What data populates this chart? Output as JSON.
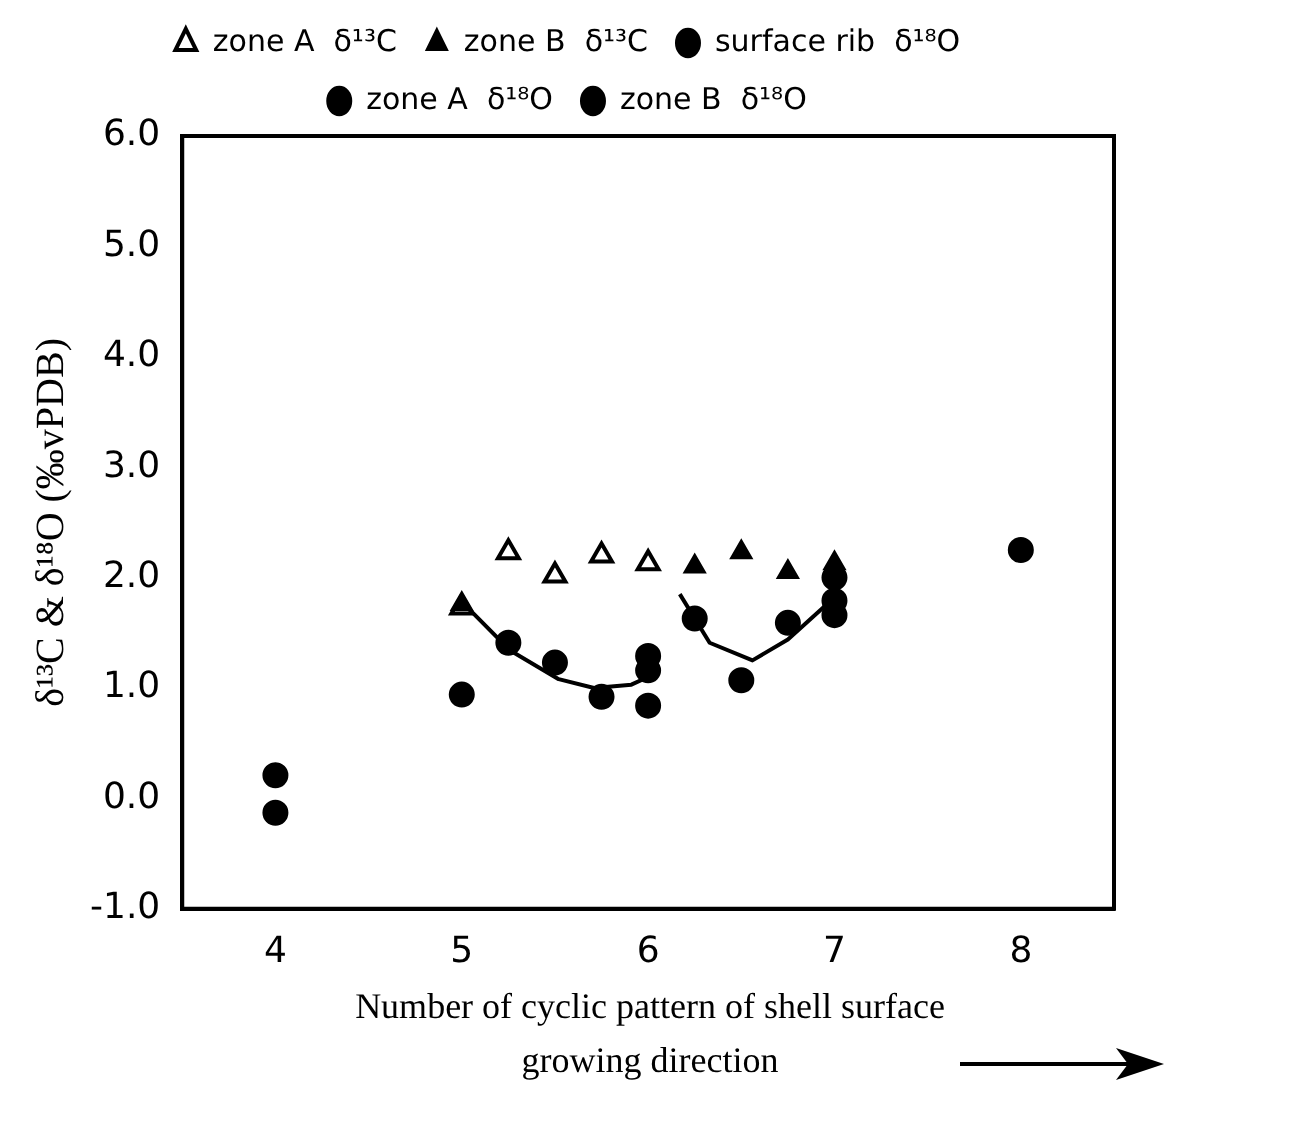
{
  "chart_data": {
    "type": "scatter",
    "xlabel": "Number of cyclic pattern of shell surface growing direction",
    "ylabel": "δ¹³C & δ¹⁸O (‰vPDB)",
    "xlim": [
      3.5,
      8.5
    ],
    "xticks": [
      4,
      5,
      6,
      7,
      8
    ],
    "ylim": [
      -1,
      6
    ],
    "yticks": [
      {
        "value": -1,
        "label": "-1.0"
      },
      {
        "value": 0,
        "label": "0.0"
      },
      {
        "value": 1,
        "label": "1.0"
      },
      {
        "value": 2,
        "label": "2.0"
      },
      {
        "value": 3,
        "label": "3.0"
      },
      {
        "value": 4,
        "label": "4.0"
      },
      {
        "value": 5,
        "label": "5.0"
      },
      {
        "value": 6,
        "label": "6.0"
      }
    ],
    "legend": "top",
    "grid": false,
    "series": [
      {
        "name": "zone A  δ¹³C",
        "marker": "triangle-open",
        "color": "#000000",
        "x": [
          5,
          5.25,
          5.5,
          5.75,
          6
        ],
        "values": [
          1.73,
          2.23,
          2.02,
          2.2,
          2.13
        ]
      },
      {
        "name": "zone B  δ¹³C",
        "marker": "triangle",
        "color": "#000000",
        "x": [
          5,
          6.25,
          6.5,
          6.75,
          7
        ],
        "values": [
          1.76,
          2.1,
          2.23,
          2.05,
          2.13
        ]
      },
      {
        "name": "surface rib  δ¹⁸O",
        "marker": "circle",
        "color": "#000000",
        "x": [
          4,
          4,
          5,
          6,
          7,
          8
        ],
        "values": [
          0.21,
          -0.13,
          0.94,
          0.84,
          1.66,
          2.25
        ]
      },
      {
        "name": "zone A  δ¹⁸O",
        "marker": "circle",
        "color": "#000000",
        "x": [
          5.25,
          5.5,
          5.75,
          6,
          6
        ],
        "values": [
          1.41,
          1.23,
          0.92,
          1.16,
          1.29
        ]
      },
      {
        "name": "zone B  δ¹⁸O",
        "marker": "circle",
        "color": "#000000",
        "x": [
          6.25,
          6.5,
          6.75,
          7,
          7
        ],
        "values": [
          1.63,
          1.07,
          1.59,
          2.0,
          1.79
        ]
      },
      {
        "type": "line",
        "marker": "none",
        "color": "#000000",
        "x": [
          5.03,
          5.26,
          5.52,
          5.71,
          5.91,
          6.0
        ],
        "values": [
          1.73,
          1.34,
          1.08,
          1.0,
          1.03,
          1.1
        ]
      },
      {
        "type": "line",
        "marker": "none",
        "color": "#000000",
        "x": [
          6.17,
          6.33,
          6.56,
          6.75,
          6.94,
          7.0
        ],
        "values": [
          1.85,
          1.41,
          1.25,
          1.44,
          1.73,
          1.81
        ]
      }
    ]
  }
}
